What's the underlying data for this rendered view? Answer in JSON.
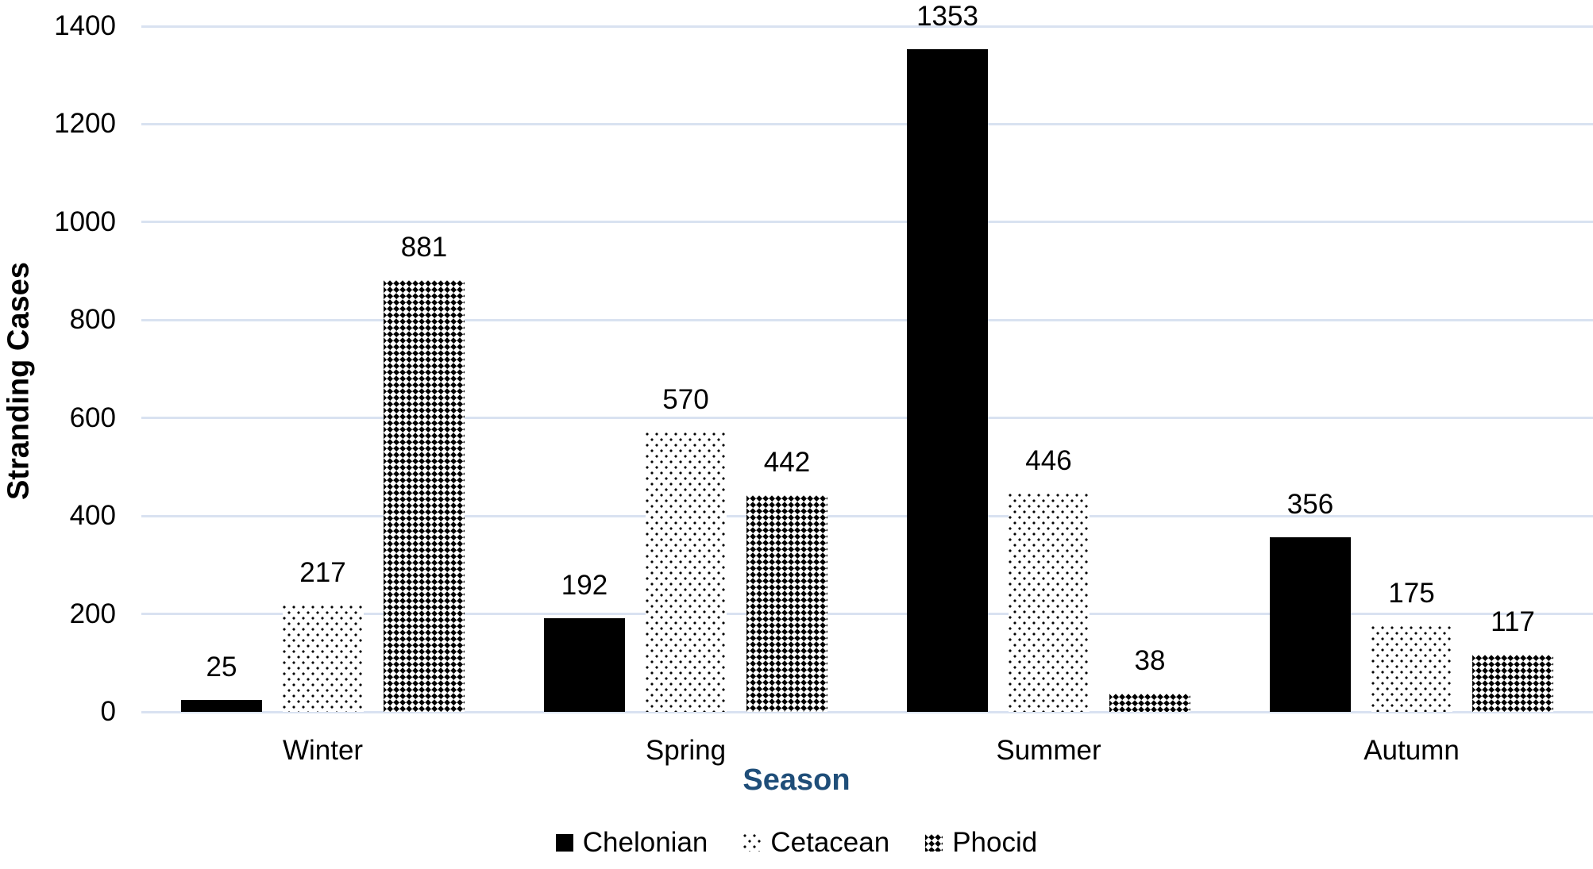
{
  "chart_data": {
    "type": "bar",
    "title": "",
    "categories": [
      "Winter",
      "Spring",
      "Summer",
      "Autumn"
    ],
    "series": [
      {
        "name": "Chelonian",
        "fill": "solid-black",
        "values": [
          25,
          192,
          1353,
          356
        ]
      },
      {
        "name": "Cetacean",
        "fill": "dotted-pattern",
        "values": [
          217,
          570,
          446,
          175
        ]
      },
      {
        "name": "Phocid",
        "fill": "diamond-checker-pattern",
        "values": [
          881,
          442,
          38,
          117
        ]
      }
    ],
    "xlabel": "Season",
    "ylabel": "Stranding Cases",
    "ylim": [
      0,
      1400
    ],
    "yticks": [
      0,
      200,
      400,
      600,
      800,
      1000,
      1200,
      1400
    ],
    "data_labels": true,
    "grid": true,
    "legend_position": "bottom",
    "colors": {
      "bar": "#000000",
      "gridline": "#d9e2f1",
      "xlabel": "#1f4e79",
      "ylabel": "#000000",
      "text": "#000000",
      "background": "#ffffff"
    }
  }
}
